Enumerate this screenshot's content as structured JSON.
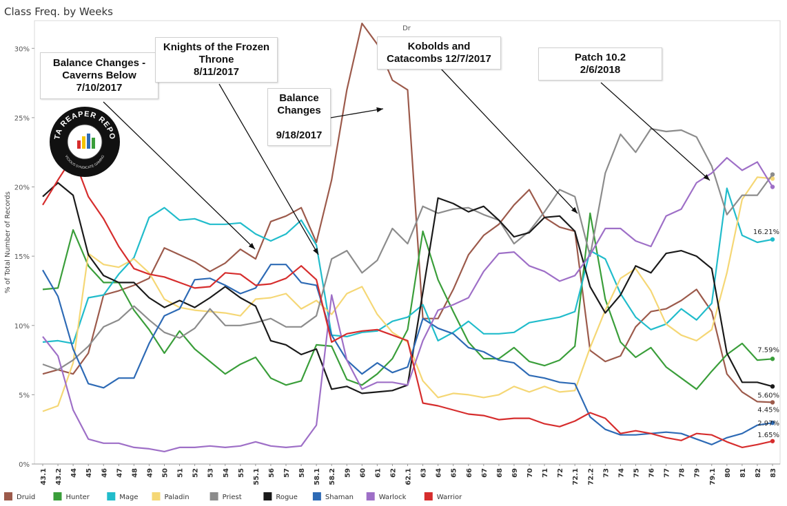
{
  "title": "Class Freq. by Weeks",
  "column_header": "Dr",
  "logo_text": "DATA REAPER REPORT",
  "logo_subtext": "VICIOUS SYNDICATE GAMING",
  "annotations": [
    {
      "lines": [
        "Balance Changes -",
        "Caverns Below",
        "7/10/2017"
      ]
    },
    {
      "lines": [
        "Knights of the Frozen",
        "Throne",
        "8/11/2017"
      ]
    },
    {
      "lines": [
        "Balance",
        "Changes",
        "",
        "9/18/2017"
      ]
    },
    {
      "lines": [
        "Kobolds and",
        "Catacombs 12/7/2017"
      ]
    },
    {
      "lines": [
        "Patch 10.2",
        "2/6/2018"
      ]
    }
  ],
  "end_labels": [
    {
      "series": "Mage",
      "text": "16.21%"
    },
    {
      "series": "Hunter",
      "text": "7.59%"
    },
    {
      "series": "Rogue",
      "text": "5.60%"
    },
    {
      "series": "Druid",
      "text": "4.45%"
    },
    {
      "series": "Shaman",
      "text": "2.97%"
    },
    {
      "series": "Warrior",
      "text": "1.65%"
    }
  ],
  "chart_data": {
    "type": "line",
    "title": "Class Freq. by Weeks",
    "ylabel": "% of Total Number of Records",
    "xlabel": "",
    "ylim": [
      0,
      32
    ],
    "yticks": [
      0,
      5,
      10,
      15,
      20,
      25,
      30
    ],
    "ytick_labels": [
      "0%",
      "5%",
      "10%",
      "15%",
      "20%",
      "25%",
      "30%"
    ],
    "grid": false,
    "legend_position": "bottom",
    "categories": [
      "43.1",
      "43.2",
      "44",
      "45",
      "46",
      "47",
      "48",
      "49",
      "50",
      "51",
      "52",
      "53",
      "54",
      "55",
      "55.1",
      "56",
      "57",
      "58",
      "58.1",
      "58.2",
      "59",
      "60",
      "61",
      "62",
      "62.1",
      "63",
      "64",
      "65",
      "66",
      "67",
      "68",
      "69",
      "70",
      "71",
      "72",
      "72.1",
      "72.2",
      "73",
      "74",
      "75",
      "76",
      "77",
      "78",
      "79",
      "79.1",
      "80",
      "81",
      "82",
      "83"
    ],
    "series": [
      {
        "name": "Druid",
        "color": "#9c5a4b",
        "values": [
          6.5,
          6.8,
          6.5,
          8.0,
          12.2,
          12.5,
          12.9,
          13.4,
          15.6,
          15.1,
          14.6,
          13.9,
          14.5,
          15.5,
          14.8,
          17.5,
          17.9,
          18.5,
          16.0,
          20.5,
          27.0,
          31.8,
          30.3,
          27.7,
          27.0,
          10.5,
          10.5,
          12.6,
          15.1,
          16.5,
          17.3,
          18.7,
          19.8,
          17.8,
          17.1,
          16.8,
          8.2,
          7.4,
          7.8,
          9.9,
          11.0,
          11.2,
          11.8,
          12.6,
          11.0,
          6.5,
          5.2,
          4.5,
          4.45
        ]
      },
      {
        "name": "Hunter",
        "color": "#3a9e3a",
        "values": [
          12.6,
          12.7,
          16.9,
          14.3,
          13.1,
          13.1,
          11.1,
          9.7,
          8.0,
          9.6,
          8.3,
          7.4,
          6.5,
          7.2,
          7.7,
          6.2,
          5.7,
          6.0,
          8.6,
          8.5,
          6.1,
          5.7,
          6.5,
          7.6,
          9.7,
          16.8,
          13.3,
          11.0,
          8.8,
          7.6,
          7.6,
          8.4,
          7.4,
          7.1,
          7.5,
          8.5,
          18.1,
          11.9,
          8.8,
          7.7,
          8.4,
          7.0,
          6.2,
          5.4,
          6.7,
          7.9,
          8.7,
          7.5,
          7.59
        ]
      },
      {
        "name": "Mage",
        "color": "#21bccb",
        "values": [
          8.8,
          8.9,
          8.7,
          12.0,
          12.2,
          13.7,
          14.9,
          17.8,
          18.5,
          17.6,
          17.7,
          17.3,
          17.3,
          17.4,
          16.6,
          16.1,
          16.6,
          17.6,
          15.8,
          9.3,
          9.2,
          9.5,
          9.6,
          10.3,
          10.6,
          11.5,
          8.9,
          9.5,
          10.3,
          9.4,
          9.4,
          9.5,
          10.2,
          10.4,
          10.6,
          11.0,
          15.4,
          14.8,
          12.3,
          10.6,
          9.7,
          10.1,
          11.2,
          10.4,
          11.6,
          19.9,
          16.5,
          16.0,
          16.21
        ]
      },
      {
        "name": "Paladin",
        "color": "#f5d775",
        "values": [
          3.8,
          4.2,
          7.3,
          15.2,
          14.4,
          14.2,
          14.8,
          13.8,
          11.9,
          11.3,
          11.1,
          11.0,
          10.9,
          10.7,
          11.9,
          12.0,
          12.3,
          11.2,
          11.8,
          10.8,
          12.3,
          12.8,
          10.8,
          9.5,
          8.8,
          6.0,
          4.8,
          5.1,
          5.0,
          4.8,
          5.0,
          5.6,
          5.2,
          5.6,
          5.2,
          5.3,
          8.4,
          11.1,
          13.4,
          14.1,
          12.5,
          10.1,
          9.3,
          8.9,
          9.7,
          13.8,
          19.1,
          20.7,
          20.6
        ]
      },
      {
        "name": "Priest",
        "color": "#8c8c8c",
        "values": [
          7.2,
          6.8,
          7.5,
          8.5,
          9.9,
          10.4,
          11.4,
          10.4,
          9.5,
          9.1,
          9.8,
          11.2,
          10.0,
          10.0,
          10.2,
          10.5,
          9.9,
          9.9,
          10.7,
          14.8,
          15.4,
          13.8,
          14.7,
          17.0,
          15.9,
          18.6,
          18.1,
          18.4,
          18.5,
          18.0,
          17.6,
          15.9,
          16.8,
          18.2,
          19.8,
          19.3,
          15.0,
          21.0,
          23.8,
          22.5,
          24.2,
          24.0,
          24.1,
          23.6,
          21.5,
          18.0,
          19.4,
          19.4,
          20.9
        ]
      },
      {
        "name": "Rogue",
        "color": "#1a1a1a",
        "values": [
          19.3,
          20.3,
          19.4,
          15.1,
          13.6,
          13.1,
          13.1,
          12.0,
          11.3,
          11.8,
          11.3,
          12.0,
          12.8,
          12.0,
          11.4,
          8.9,
          8.6,
          7.9,
          8.3,
          5.4,
          5.6,
          5.1,
          5.2,
          5.3,
          5.7,
          12.4,
          19.2,
          18.8,
          18.2,
          18.6,
          17.6,
          16.4,
          16.7,
          17.8,
          17.9,
          16.8,
          12.8,
          10.9,
          12.2,
          14.3,
          13.8,
          15.2,
          15.4,
          15.0,
          14.1,
          8.0,
          5.9,
          5.9,
          5.6
        ]
      },
      {
        "name": "Shaman",
        "color": "#2d6ab5",
        "values": [
          14.0,
          12.1,
          8.3,
          5.8,
          5.5,
          6.2,
          6.2,
          8.7,
          10.7,
          11.2,
          13.3,
          13.4,
          12.9,
          12.3,
          12.7,
          14.4,
          14.4,
          13.1,
          12.9,
          9.3,
          7.5,
          6.5,
          7.3,
          6.6,
          7.0,
          10.5,
          9.8,
          9.4,
          8.4,
          8.1,
          7.5,
          7.3,
          6.4,
          6.2,
          5.9,
          5.8,
          3.4,
          2.5,
          2.1,
          2.1,
          2.2,
          2.3,
          2.2,
          1.8,
          1.4,
          1.9,
          2.2,
          2.8,
          2.97
        ]
      },
      {
        "name": "Warlock",
        "color": "#9e6fc7",
        "values": [
          9.2,
          7.8,
          3.9,
          1.8,
          1.5,
          1.5,
          1.2,
          1.1,
          0.9,
          1.2,
          1.2,
          1.3,
          1.2,
          1.3,
          1.6,
          1.3,
          1.2,
          1.3,
          2.8,
          12.2,
          7.5,
          5.4,
          5.9,
          5.9,
          5.7,
          8.9,
          11.1,
          11.5,
          12.0,
          13.9,
          15.2,
          15.3,
          14.3,
          13.9,
          13.2,
          13.6,
          15.1,
          17.0,
          17.0,
          16.1,
          15.7,
          17.9,
          18.4,
          20.3,
          21.0,
          22.1,
          21.2,
          21.8,
          20.0
        ]
      },
      {
        "name": "Warrior",
        "color": "#d62d2d",
        "values": [
          18.7,
          20.5,
          22.2,
          19.3,
          17.7,
          15.7,
          14.1,
          13.7,
          13.5,
          13.1,
          12.7,
          12.8,
          13.8,
          13.7,
          12.9,
          13.0,
          13.4,
          14.3,
          13.3,
          8.8,
          9.4,
          9.6,
          9.7,
          9.3,
          8.9,
          4.4,
          4.2,
          3.9,
          3.6,
          3.5,
          3.2,
          3.3,
          3.3,
          2.9,
          2.7,
          3.1,
          3.7,
          3.3,
          2.2,
          2.4,
          2.2,
          1.9,
          1.7,
          2.2,
          2.1,
          1.6,
          1.2,
          1.4,
          1.65
        ]
      }
    ]
  }
}
